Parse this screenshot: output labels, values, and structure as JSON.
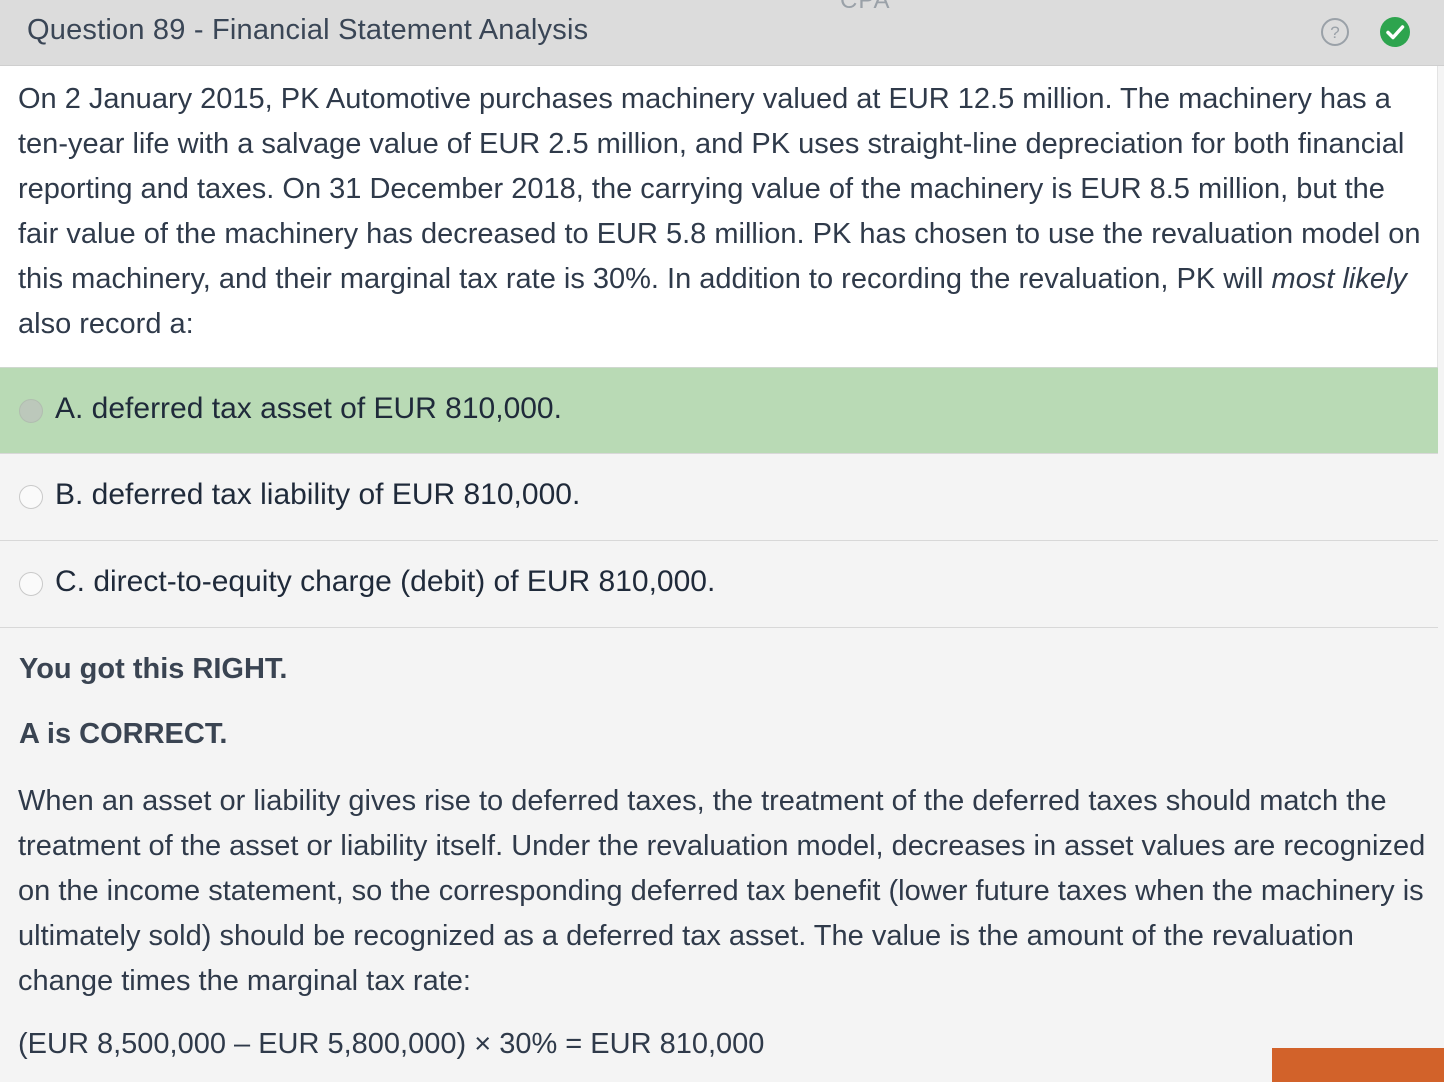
{
  "header": {
    "title": "Question 89 - Financial Statement Analysis",
    "partial_label": "CPA",
    "help_icon": "question-circle-icon",
    "status_icon": "check-circle-icon",
    "status_color": "#2da44e"
  },
  "question": {
    "text_before": "On 2 January 2015, PK Automotive purchases machinery valued at EUR 12.5 million.  The machinery has a ten-year life with a salvage value of EUR 2.5 million, and PK uses straight-line depreciation for both financial reporting and taxes.  On 31 December 2018, the carrying value of the machinery is EUR 8.5 million, but the fair value of the machinery has decreased to EUR 5.8 million.  PK has chosen to use the revaluation model on this machinery, and their marginal tax rate is 30%.  In addition to recording the revaluation, PK will ",
    "emphasis": "most likely",
    "text_after": " also record a:"
  },
  "options": [
    {
      "label": "A. deferred tax asset of EUR 810,000.",
      "state": "correct"
    },
    {
      "label": "B. deferred tax liability of EUR 810,000.",
      "state": "none"
    },
    {
      "label": "C. direct-to-equity charge (debit) of EUR 810,000.",
      "state": "none"
    }
  ],
  "feedback": {
    "result": "You got this RIGHT.",
    "correct_answer": "A is CORRECT.",
    "explanation": "When an asset or liability gives rise to deferred taxes, the treatment of the deferred taxes should match the treatment of the asset or liability itself.  Under the revaluation model, decreases in asset values are recognized on the income statement, so the corresponding deferred tax benefit (lower future taxes when the machinery is ultimately sold) should be recognized as a deferred tax asset.  The value is the amount of the revaluation change times the marginal tax rate:",
    "formula": "(EUR 8,500,000 – EUR 5,800,000) × 30% = EUR 810,000"
  },
  "colors": {
    "correct_option_bg": "#b9dab5",
    "accent_orange": "#d2622a"
  }
}
